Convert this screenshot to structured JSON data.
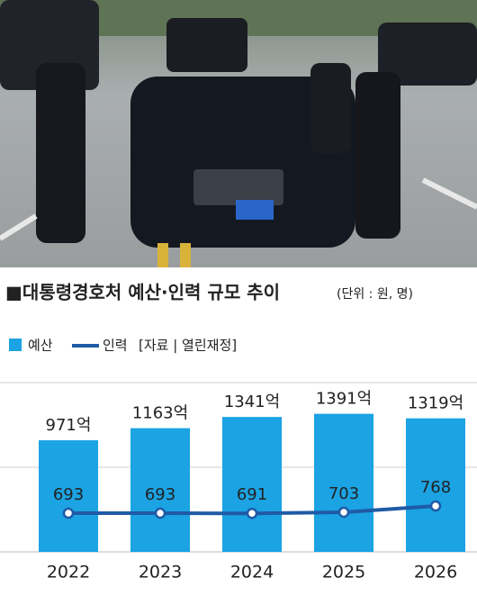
{
  "chart_data": {
    "type": "combo",
    "title": "■대통령경호처 예산·인력 규모 추이",
    "subtitle": "(단위 : 원, 명)",
    "source": "[자료 | 열린재정]",
    "categories": [
      "2022",
      "2023",
      "2024",
      "2025",
      "2026"
    ],
    "series": [
      {
        "name": "예산",
        "type": "bar",
        "color": "#1ba3e3",
        "values": [
          971,
          1163,
          1341,
          1391,
          1319
        ],
        "value_labels": [
          "971억",
          "1163억",
          "1341억",
          "1391억",
          "1319억"
        ]
      },
      {
        "name": "인력",
        "type": "line",
        "axis": "y2",
        "color": "#1f5aa6",
        "values": [
          693,
          693,
          691,
          703,
          768
        ]
      }
    ],
    "ylim": [
      -800,
      1500
    ],
    "y2lim": [
      290,
      1800
    ]
  }
}
